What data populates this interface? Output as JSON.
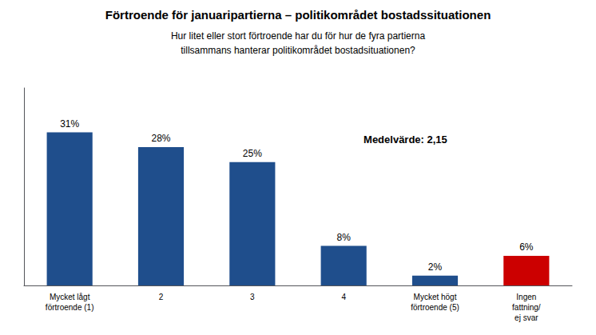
{
  "chart_data": {
    "type": "bar",
    "title": "Förtroende för januaripartierna – politikområdet bostadssituationen",
    "subtitle": "Hur litet eller stort förtroende har du för hur de fyra partierna\ntillsammans hanterar politikområdet bostadsituationen?",
    "categories": [
      "Mycket lågt\nförtroende (1)",
      "2",
      "3",
      "4",
      "Mycket högt\nförtroende (5)",
      "Ingen\nfattning/\nej svar"
    ],
    "values": [
      31,
      28,
      25,
      8,
      2,
      6
    ],
    "value_labels": [
      "31%",
      "28%",
      "25%",
      "8%",
      "2%",
      "6%"
    ],
    "colors": [
      "#1f4e8c",
      "#1f4e8c",
      "#1f4e8c",
      "#1f4e8c",
      "#1f4e8c",
      "#cc0000"
    ],
    "annotation": "Medelvärde: 2,15",
    "ylim": [
      0,
      40
    ],
    "grid": false,
    "data_labels": true,
    "tick_labels": "x"
  }
}
